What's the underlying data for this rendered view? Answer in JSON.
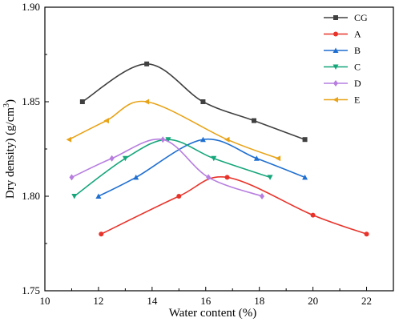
{
  "chart_data": {
    "type": "line",
    "xlabel": "Water content (%)",
    "ylabel_main": "Dry density) (g/cm",
    "ylabel_sup": "3",
    "ylabel_close": ")",
    "xlim": [
      10,
      23
    ],
    "ylim": [
      1.75,
      1.9
    ],
    "xticks": [
      10,
      12,
      14,
      16,
      18,
      20,
      22
    ],
    "yticks": [
      1.75,
      1.8,
      1.85,
      1.9
    ],
    "ytick_labels": [
      "1.75",
      "1.80",
      "1.85",
      "1.90"
    ],
    "legend_position": "top-right",
    "grid": false,
    "series": [
      {
        "name": "CG",
        "color": "#404040",
        "marker": "square",
        "x": [
          11.4,
          13.8,
          15.9,
          17.8,
          19.7
        ],
        "y": [
          1.85,
          1.87,
          1.85,
          1.84,
          1.83
        ]
      },
      {
        "name": "A",
        "color": "#e8332a",
        "marker": "circle",
        "x": [
          12.1,
          15.0,
          16.8,
          20.0,
          22.0
        ],
        "y": [
          1.78,
          1.8,
          1.81,
          1.79,
          1.78
        ]
      },
      {
        "name": "B",
        "color": "#1f6fd1",
        "marker": "triangle-up",
        "x": [
          12.0,
          13.4,
          15.9,
          17.9,
          19.7
        ],
        "y": [
          1.8,
          1.81,
          1.83,
          1.82,
          1.81
        ]
      },
      {
        "name": "C",
        "color": "#16a67a",
        "marker": "triangle-down",
        "x": [
          11.1,
          13.0,
          14.6,
          16.3,
          18.4
        ],
        "y": [
          1.8,
          1.82,
          1.83,
          1.82,
          1.81
        ]
      },
      {
        "name": "D",
        "color": "#b77ee0",
        "marker": "diamond",
        "x": [
          11.0,
          12.5,
          14.4,
          16.1,
          18.1
        ],
        "y": [
          1.81,
          1.82,
          1.83,
          1.81,
          1.8
        ]
      },
      {
        "name": "E",
        "color": "#e8a317",
        "marker": "triangle-left",
        "x": [
          10.9,
          12.3,
          13.8,
          16.8,
          18.7
        ],
        "y": [
          1.83,
          1.84,
          1.85,
          1.83,
          1.82
        ]
      }
    ]
  }
}
